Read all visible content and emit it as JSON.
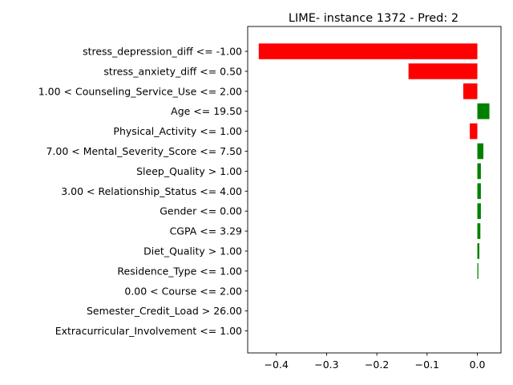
{
  "chart_data": {
    "type": "bar",
    "orientation": "horizontal",
    "title": "LIME- instance 1372 - Pred: 2",
    "xlabel": "",
    "ylabel": "",
    "xlim": [
      -0.457,
      0.047
    ],
    "xticks": [
      -0.4,
      -0.3,
      -0.2,
      -0.1,
      0.0
    ],
    "xtick_labels": [
      "−0.4",
      "−0.3",
      "−0.2",
      "−0.1",
      "0.0"
    ],
    "grid": false,
    "legend": "none",
    "colors": {
      "negative": "#ff0000",
      "positive": "#008000"
    },
    "categories": [
      "stress_depression_diff <= -1.00",
      "stress_anxiety_diff <= 0.50",
      "1.00 < Counseling_Service_Use <= 2.00",
      "Age <= 19.50",
      "Physical_Activity <= 1.00",
      "7.00 < Mental_Severity_Score <= 7.50",
      "Sleep_Quality > 1.00",
      "3.00 < Relationship_Status <= 4.00",
      "Gender <= 0.00",
      "CGPA <= 3.29",
      "Diet_Quality > 1.00",
      "Residence_Type <= 1.00",
      "0.00 < Course <= 2.00",
      "Semester_Credit_Load > 26.00",
      "Extracurricular_Involvement <= 1.00"
    ],
    "values": [
      -0.435,
      -0.137,
      -0.028,
      0.024,
      -0.015,
      0.012,
      0.007,
      0.007,
      0.007,
      0.006,
      0.004,
      0.002,
      0.0,
      0.0,
      0.0
    ]
  }
}
